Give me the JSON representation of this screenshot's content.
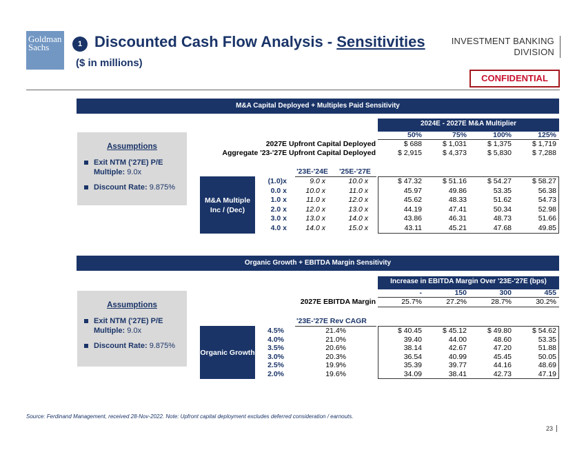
{
  "header": {
    "logo_text": "Goldman Sachs",
    "badge": "1",
    "title_main": "Discounted Cash Flow Analysis - ",
    "title_underlined": "Sensitivities",
    "subtitle": "($ in millions)",
    "division_line1": "INVESTMENT BANKING",
    "division_line2": "DIVISION",
    "confidential": "CONFIDENTIAL"
  },
  "section1": {
    "band_title": "M&A Capital Deployed + Multiples Paid Sensitivity",
    "col_group_title": "2024E - 2027E M&A Multiplier",
    "col_headers": [
      "50%",
      "75%",
      "100%",
      "125%"
    ],
    "row1_label": "2027E Upfront Capital Deployed",
    "row1_values": [
      "$ 688",
      "$ 1,031",
      "$ 1,375",
      "$ 1,719"
    ],
    "row2_label": "Aggregate '23-'27E Upfront Capital Deployed",
    "row2_values": [
      "$ 2,915",
      "$ 4,373",
      "$ 5,830",
      "$ 7,288"
    ],
    "sub_col1": "'23E-'24E",
    "sub_col2": "'25E-'27E",
    "row_group_label": "M&A Multiple Inc / (Dec)",
    "rows": [
      {
        "inc": "(1.0)x",
        "m1": "9.0 x",
        "m2": "10.0 x",
        "v": [
          "$ 47.32",
          "$ 51.16",
          "$ 54.27",
          "$ 58.27"
        ]
      },
      {
        "inc": "0.0 x",
        "m1": "10.0 x",
        "m2": "11.0 x",
        "v": [
          "45.97",
          "49.86",
          "53.35",
          "56.38"
        ]
      },
      {
        "inc": "1.0 x",
        "m1": "11.0 x",
        "m2": "12.0 x",
        "v": [
          "45.62",
          "48.33",
          "51.62",
          "54.73"
        ]
      },
      {
        "inc": "2.0 x",
        "m1": "12.0 x",
        "m2": "13.0 x",
        "v": [
          "44.19",
          "47.41",
          "50.34",
          "52.98"
        ]
      },
      {
        "inc": "3.0 x",
        "m1": "13.0 x",
        "m2": "14.0 x",
        "v": [
          "43.86",
          "46.31",
          "48.73",
          "51.66"
        ]
      },
      {
        "inc": "4.0 x",
        "m1": "14.0 x",
        "m2": "15.0 x",
        "v": [
          "43.11",
          "45.21",
          "47.68",
          "49.85"
        ]
      }
    ]
  },
  "section2": {
    "band_title": "Organic Growth + EBITDA Margin Sensitivity",
    "col_group_title": "Increase in EBITDA Margin Over '23E-'27E (bps)",
    "col_headers": [
      "-",
      "150",
      "300",
      "455"
    ],
    "margin_label": "2027E EBITDA Margin",
    "margin_values": [
      "25.7%",
      "27.2%",
      "28.7%",
      "30.2%"
    ],
    "sub_col": "'23E-'27E Rev CAGR",
    "row_group_label": "Organic Growth",
    "rows": [
      {
        "g": "4.5%",
        "cagr": "21.4%",
        "v": [
          "$ 40.45",
          "$ 45.12",
          "$ 49.80",
          "$ 54.62"
        ]
      },
      {
        "g": "4.0%",
        "cagr": "21.0%",
        "v": [
          "39.40",
          "44.00",
          "48.60",
          "53.35"
        ]
      },
      {
        "g": "3.5%",
        "cagr": "20.6%",
        "v": [
          "38.14",
          "42.67",
          "47.20",
          "51.88"
        ]
      },
      {
        "g": "3.0%",
        "cagr": "20.3%",
        "v": [
          "36.54",
          "40.99",
          "45.45",
          "50.05"
        ]
      },
      {
        "g": "2.5%",
        "cagr": "19.9%",
        "v": [
          "35.39",
          "39.77",
          "44.16",
          "48.69"
        ]
      },
      {
        "g": "2.0%",
        "cagr": "19.6%",
        "v": [
          "34.09",
          "38.41",
          "42.73",
          "47.19"
        ]
      }
    ]
  },
  "assumptions": {
    "heading": "Assumptions",
    "item1_label": "Exit NTM ('27E) P/E Multiple:",
    "item1_value": "9.0x",
    "item2_label": "Discount Rate:",
    "item2_value": "9.875%"
  },
  "footer": {
    "source": "Source: Ferdinand Management, received 28-Nov-2022. Note: Upfront capital deployment excludes deferred consideration / earnouts.",
    "page": "23"
  }
}
